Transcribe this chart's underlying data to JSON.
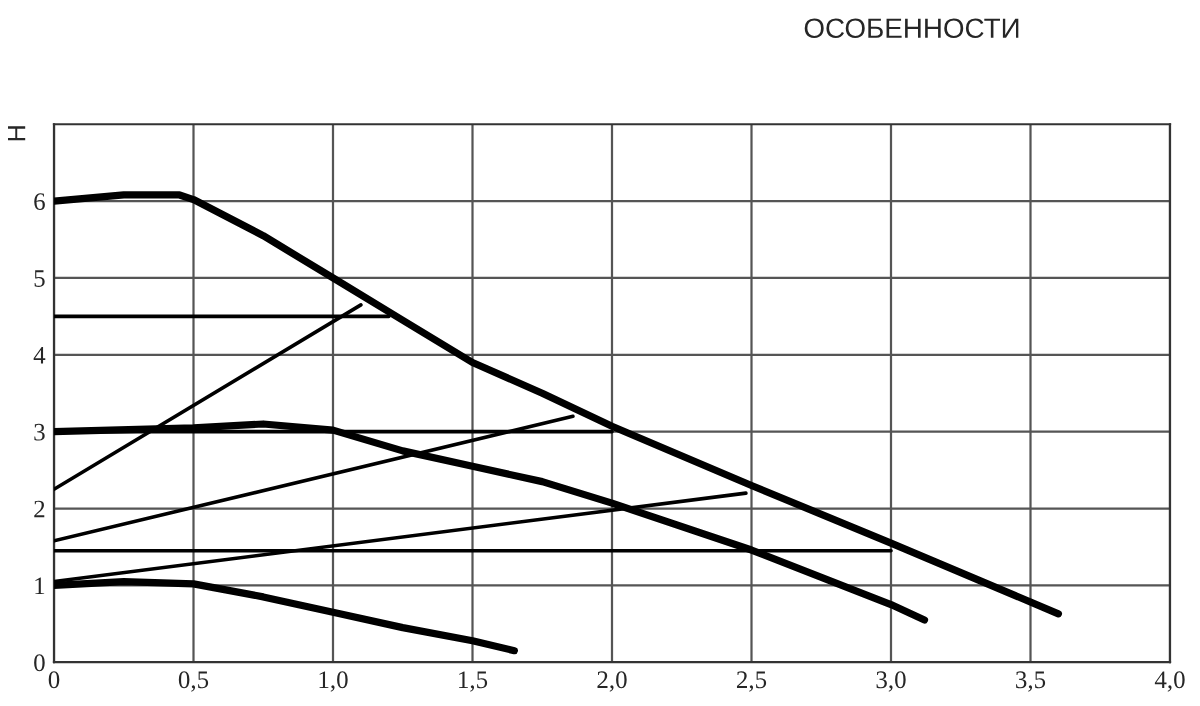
{
  "chart_data": {
    "type": "line",
    "title": "ОСОБЕННОСТИ",
    "ylabel": "H",
    "series": [
      {
        "color": "#000000",
        "x": [
          0,
          0.25,
          0.45,
          0.5,
          0.75,
          1.0,
          1.25,
          1.5,
          1.75,
          2.0,
          2.5,
          3.0,
          3.6
        ],
        "values": [
          6.0,
          6.08,
          6.08,
          6.02,
          5.55,
          5.0,
          4.45,
          3.9,
          3.5,
          3.07,
          2.3,
          1.55,
          0.63
        ]
      },
      {
        "color": "#000000",
        "x": [
          0,
          0.5,
          0.75,
          1.0,
          1.25,
          1.5,
          1.75,
          2.0,
          2.5,
          3.0,
          3.12
        ],
        "values": [
          3.0,
          3.05,
          3.1,
          3.02,
          2.75,
          2.55,
          2.35,
          2.07,
          1.46,
          0.75,
          0.55
        ]
      },
      {
        "color": "#000000",
        "x": [
          0,
          0.25,
          0.5,
          0.75,
          1.0,
          1.25,
          1.5,
          1.65
        ],
        "values": [
          1.0,
          1.05,
          1.02,
          0.85,
          0.65,
          0.45,
          0.28,
          0.15
        ]
      },
      {
        "color": "#000000",
        "x": [
          0,
          1.2
        ],
        "values": [
          4.5,
          4.5
        ]
      },
      {
        "color": "#000000",
        "x": [
          0,
          2.0
        ],
        "values": [
          3.0,
          3.0
        ]
      },
      {
        "color": "#000000",
        "x": [
          0,
          3.0
        ],
        "values": [
          1.45,
          1.45
        ]
      },
      {
        "color": "#000000",
        "x": [
          0,
          1.1
        ],
        "values": [
          2.25,
          4.65
        ]
      },
      {
        "color": "#000000",
        "x": [
          0,
          1.86
        ],
        "values": [
          1.58,
          3.2
        ]
      },
      {
        "color": "#000000",
        "x": [
          0,
          2.48
        ],
        "values": [
          1.05,
          2.2
        ]
      }
    ],
    "xlim": [
      0,
      4.0
    ],
    "ylim": [
      0,
      7
    ],
    "xticks": [
      0,
      {
        "value": 0.5,
        "label": "0,5"
      },
      {
        "value": 1.0,
        "label": "1,0"
      },
      {
        "value": 1.5,
        "label": "1,5"
      },
      {
        "value": 2.0,
        "label": "2,0"
      },
      {
        "value": 2.5,
        "label": "2,5"
      },
      {
        "value": 3.0,
        "label": "3,0"
      },
      {
        "value": 3.5,
        "label": "3,5"
      },
      {
        "value": 4.0,
        "label": "4,0"
      }
    ],
    "yticks": [
      0,
      1,
      2,
      3,
      4,
      5,
      6
    ],
    "grid": true,
    "marker": "none",
    "line_style": "solid"
  }
}
